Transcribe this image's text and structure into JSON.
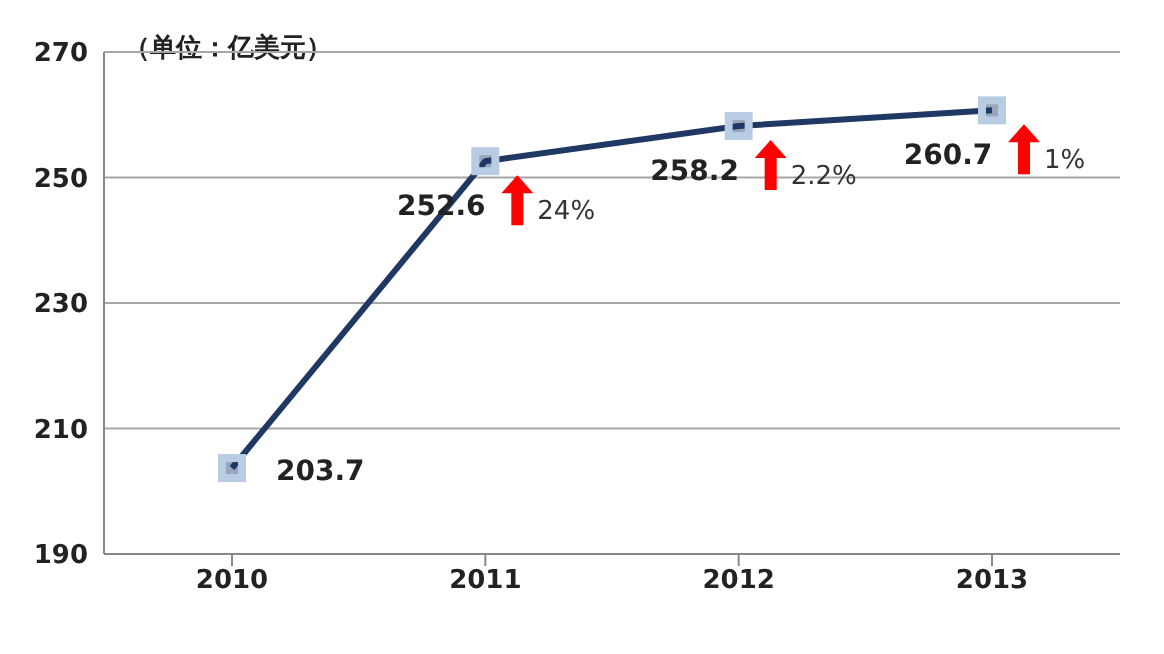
{
  "chart_data": {
    "type": "line",
    "title": "（单位：亿美元）",
    "categories": [
      "2010",
      "2011",
      "2012",
      "2013"
    ],
    "series": [
      {
        "color": "#1f3864",
        "values": [
          203.7,
          252.6,
          258.2,
          260.7
        ]
      }
    ],
    "ylim": [
      190,
      270
    ],
    "yticks": [
      190,
      210,
      230,
      250,
      270
    ],
    "grid": "y",
    "marker": "square",
    "data_labels": true,
    "legend": false,
    "annotations": [
      {
        "text": "24%",
        "x": "2011",
        "y": 252.6
      },
      {
        "text": "2.2%",
        "x": "2012",
        "y": 258.2
      },
      {
        "text": "1%",
        "x": "2013",
        "y": 260.7
      }
    ]
  }
}
